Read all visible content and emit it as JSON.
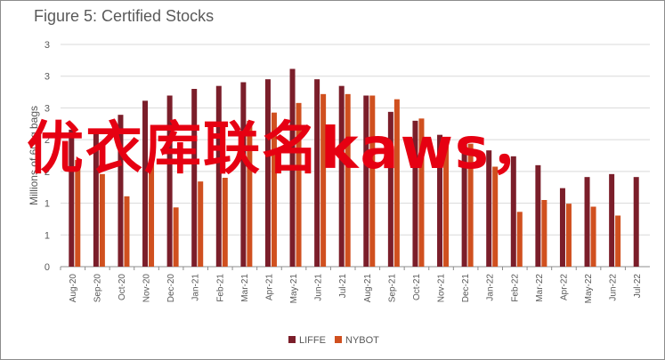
{
  "chart_data": {
    "type": "bar",
    "title": "Figure 5: Certified Stocks",
    "ylabel": "Millions of 60kg bags",
    "xlabel": "",
    "ylim": [
      0,
      3
    ],
    "ytick_labels": [
      "0",
      "1",
      "1",
      "2",
      "2",
      "3",
      "3",
      "3"
    ],
    "grid": true,
    "legend_position": "bottom",
    "categories": [
      "Aug-20",
      "Sep-20",
      "Oct-20",
      "Nov-20",
      "Dec-20",
      "Jan-21",
      "Feb-21",
      "Mar-21",
      "Apr-21",
      "May-21",
      "Jun-21",
      "Jul-21",
      "Aug-21",
      "Sep-21",
      "Oct-21",
      "Nov-21",
      "Dec-21",
      "Jan-22",
      "Feb-22",
      "Mar-22",
      "Apr-22",
      "May-22",
      "Jun-22",
      "Jul-22"
    ],
    "series": [
      {
        "name": "LIFFE",
        "color": "#7b1e2a",
        "values": [
          1.85,
          1.85,
          2.05,
          2.24,
          2.31,
          2.4,
          2.44,
          2.49,
          2.53,
          2.67,
          2.53,
          2.44,
          2.31,
          2.09,
          1.97,
          1.78,
          1.66,
          1.57,
          1.49,
          1.37,
          1.06,
          1.21,
          1.25,
          1.21
        ]
      },
      {
        "name": "NYBOT",
        "color": "#d0501f",
        "values": [
          1.44,
          1.25,
          0.95,
          1.4,
          0.8,
          1.15,
          1.2,
          1.97,
          2.08,
          2.21,
          2.33,
          2.33,
          2.31,
          2.26,
          2.0,
          1.7,
          1.66,
          1.35,
          0.74,
          0.9,
          0.85,
          0.81,
          0.69,
          null
        ]
      }
    ]
  },
  "overlay_text": "优衣库联名kaws，"
}
